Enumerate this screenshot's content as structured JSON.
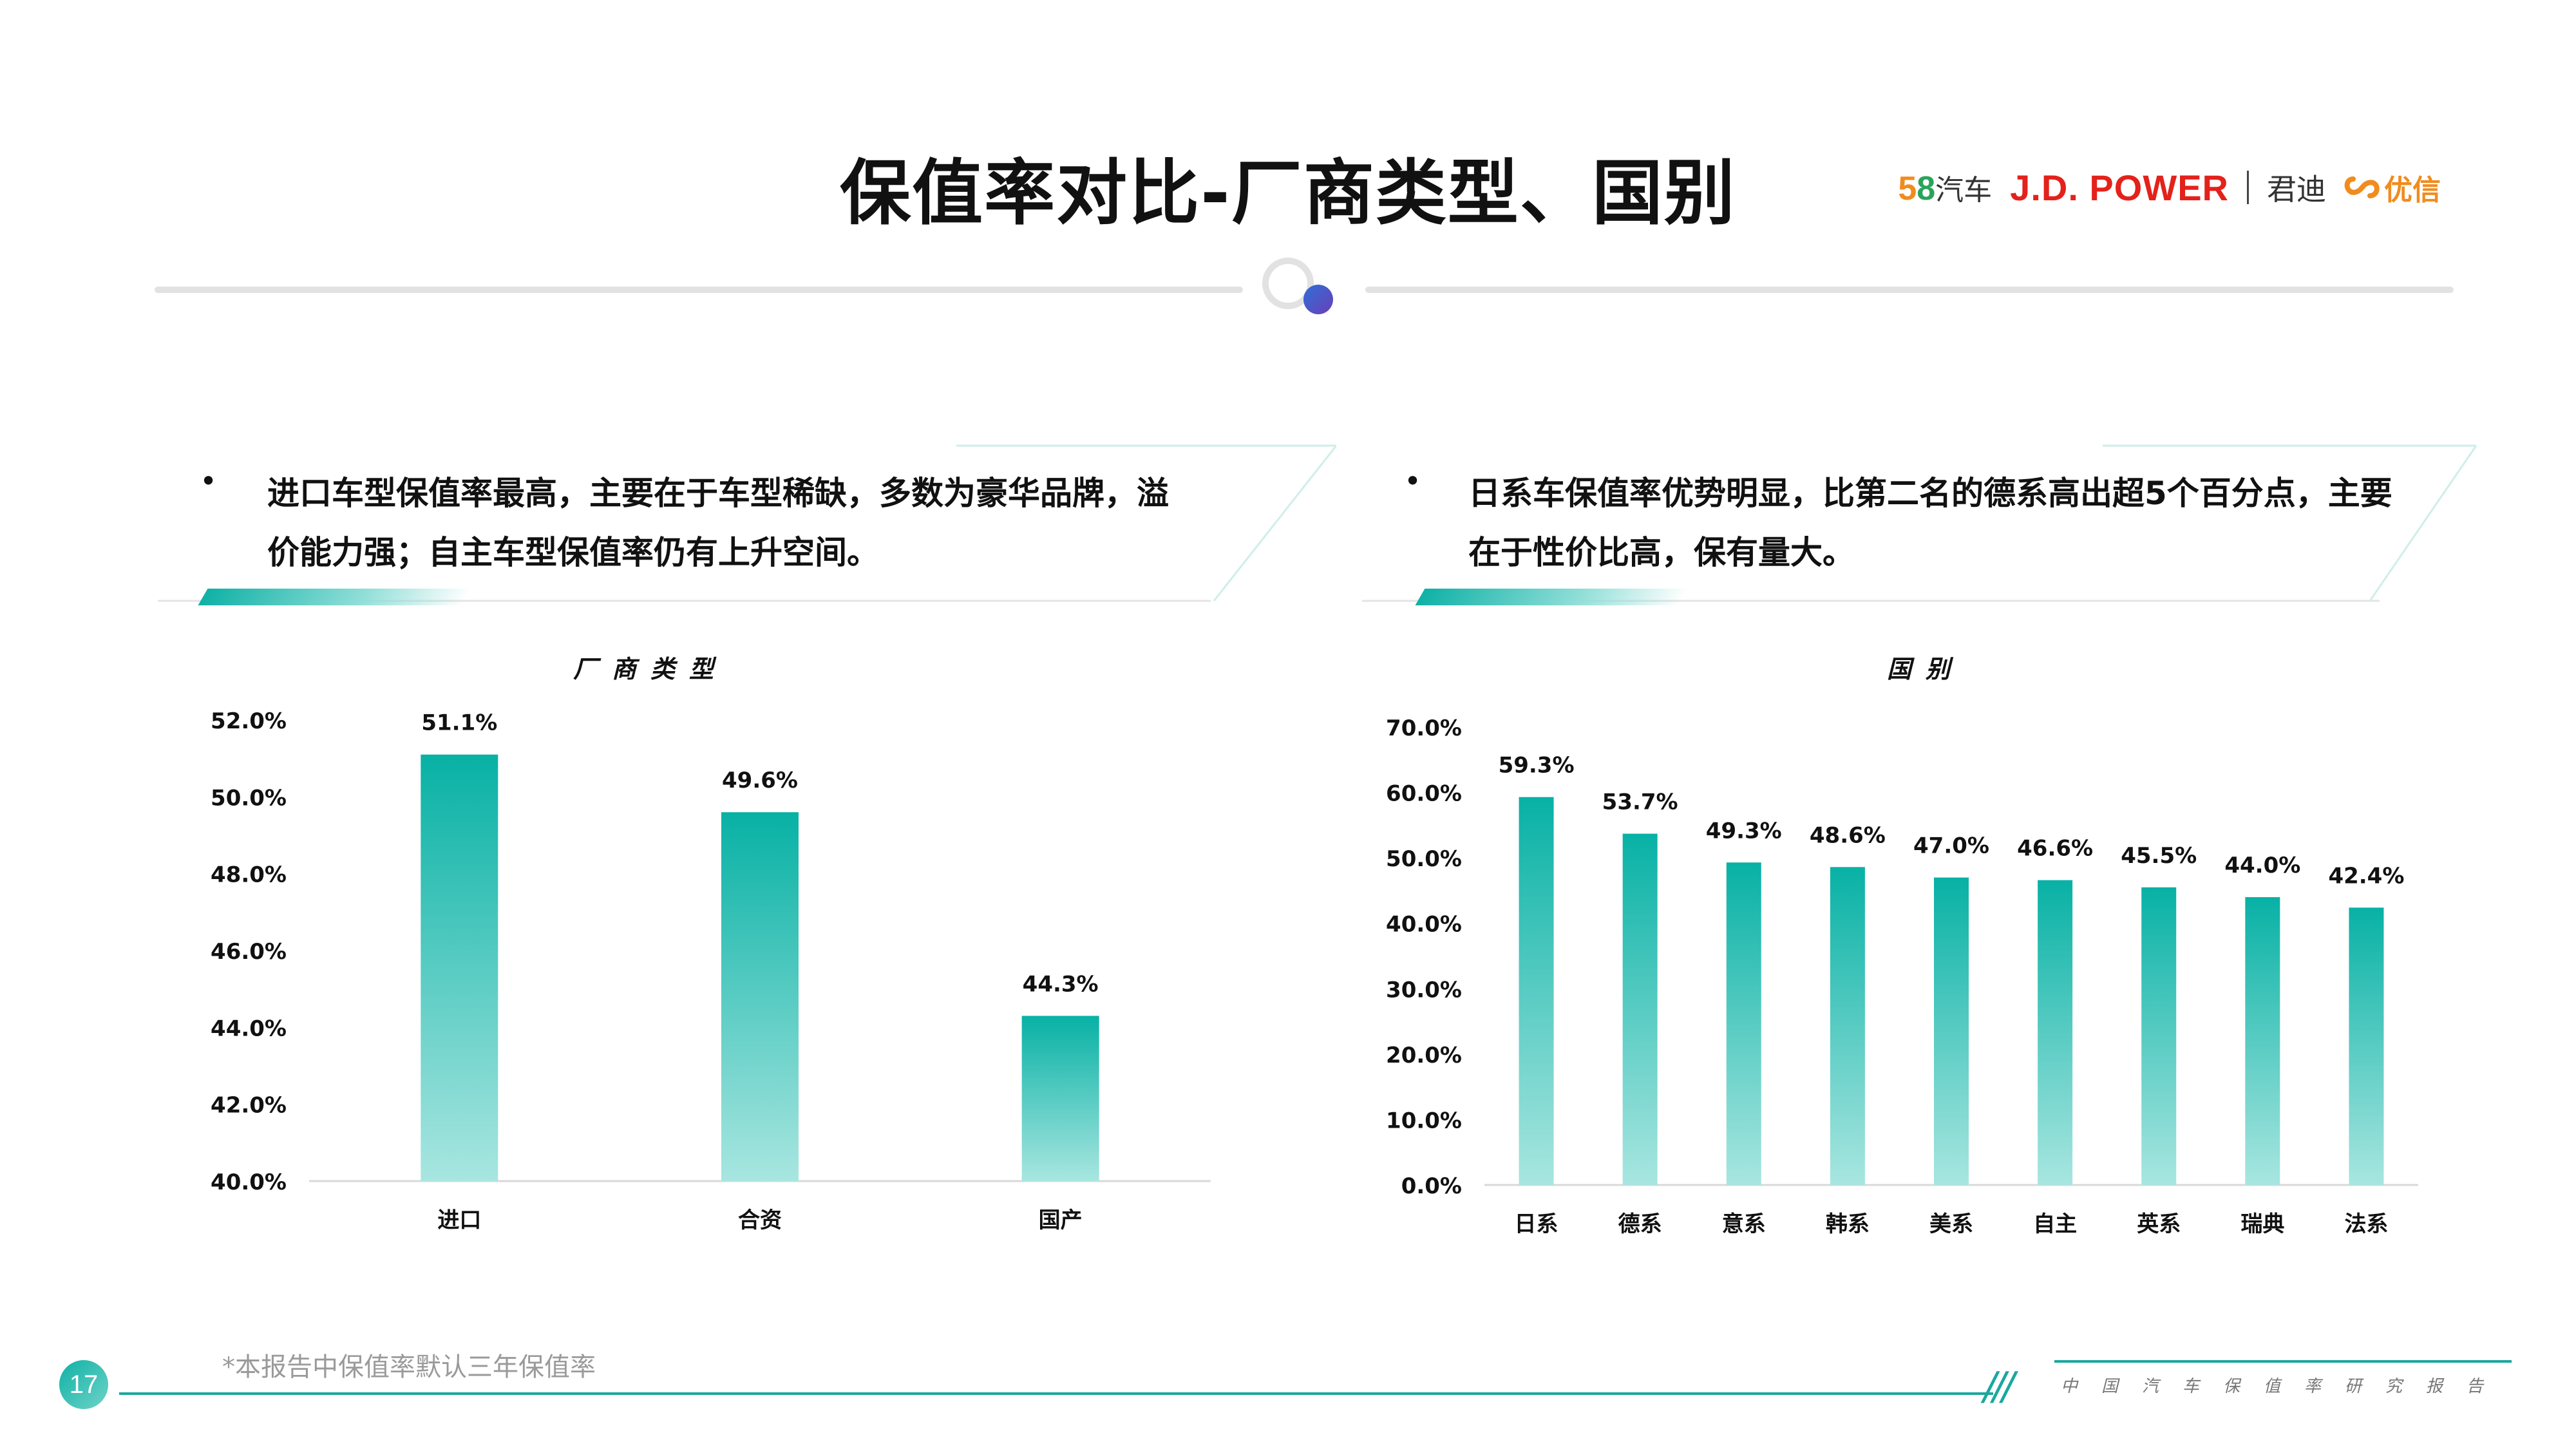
{
  "header": {
    "title": "保值率对比-厂商类型、国别",
    "logos": {
      "logo58_five": "5",
      "logo58_eight": "8",
      "logo58_car": "汽车",
      "jdpower": "J.D. POWER",
      "jundi": "君迪",
      "youxin": "优信"
    }
  },
  "notes": {
    "left": {
      "bullet": "•",
      "line1": "进口车型保值率最高，主要在于车型稀缺，多数为豪华品牌，溢",
      "line2": "价能力强；自主车型保值率仍有上升空间。"
    },
    "right": {
      "bullet": "•",
      "line1": "日系车保值率优势明显，比第二名的德系高出超5个百分点，主要",
      "line2": "在于性价比高，保有量大。"
    }
  },
  "colors": {
    "bar_top": "#08b1a5",
    "bar_bottom": "#a8e6e0",
    "accent": "#1aa89c"
  },
  "chart_data": [
    {
      "type": "bar",
      "title": "厂商类型",
      "categories": [
        "进口",
        "合资",
        "国产"
      ],
      "values": [
        51.1,
        49.6,
        44.3
      ],
      "value_labels": [
        "51.1%",
        "49.6%",
        "44.3%"
      ],
      "ylim": [
        40,
        52
      ],
      "yticks": [
        52,
        50,
        48,
        46,
        44,
        42,
        40
      ],
      "ytick_labels": [
        "52.0%",
        "50.0%",
        "48.0%",
        "46.0%",
        "44.0%",
        "42.0%",
        "40.0%"
      ],
      "grid": false
    },
    {
      "type": "bar",
      "title": "国别",
      "categories": [
        "日系",
        "德系",
        "意系",
        "韩系",
        "美系",
        "自主",
        "英系",
        "瑞典",
        "法系"
      ],
      "values": [
        59.3,
        53.7,
        49.3,
        48.6,
        47.0,
        46.6,
        45.5,
        44.0,
        42.4
      ],
      "value_labels": [
        "59.3%",
        "53.7%",
        "49.3%",
        "48.6%",
        "47.0%",
        "46.6%",
        "45.5%",
        "44.0%",
        "42.4%"
      ],
      "ylim": [
        0,
        70
      ],
      "yticks": [
        70,
        60,
        50,
        40,
        30,
        20,
        10,
        0
      ],
      "ytick_labels": [
        "70.0%",
        "60.0%",
        "50.0%",
        "40.0%",
        "30.0%",
        "20.0%",
        "10.0%",
        "0.0%"
      ],
      "grid": false
    }
  ],
  "footer": {
    "footnote": "*本报告中保值率默认三年保值率",
    "brand": "中国汽车保值率研究报告",
    "page": "17",
    "slashes": "///"
  }
}
